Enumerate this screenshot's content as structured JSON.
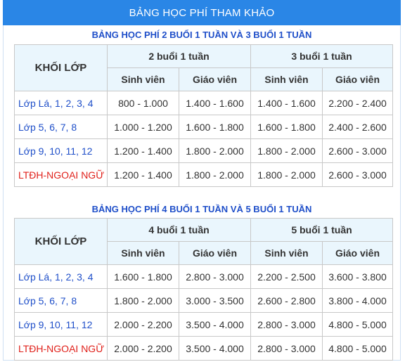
{
  "banner": {
    "title": "BẢNG HỌC PHÍ THAM KHẢO"
  },
  "tables": [
    {
      "title": "BẢNG HỌC PHÍ 2 BUỔI 1 TUẦN VÀ 3 BUỔI 1 TUẦN",
      "grade_header": "KHỐI LỚP",
      "periods": [
        "2 buổi 1 tuần",
        "3 buổi 1 tuần"
      ],
      "roles": [
        "Sinh viên",
        "Giáo viên",
        "Sinh viên",
        "Giáo viên"
      ],
      "rows": [
        {
          "grade": "Lớp Lá, 1, 2, 3, 4",
          "values": [
            "800 - 1.000",
            "1.400 - 1.600",
            "1.400 - 1.600",
            "2.200 - 2.400"
          ]
        },
        {
          "grade": "Lớp 5, 6, 7, 8",
          "values": [
            "1.000 - 1.200",
            "1.600 - 1.800",
            "1.600 - 1.800",
            "2.400 - 2.600"
          ]
        },
        {
          "grade": "Lớp 9, 10, 11, 12",
          "values": [
            "1.200 - 1.400",
            "1.800 - 2.000",
            "1.800 - 2.000",
            "2.600 - 3.000"
          ]
        },
        {
          "grade": "LTĐH-NGOẠI NGỮ",
          "values": [
            "1.200 - 1.400",
            "1.800 - 2.000",
            "1.800 - 2.000",
            "2.600 - 3.000"
          ]
        }
      ]
    },
    {
      "title": "BẢNG HỌC PHÍ 4 BUỔI 1 TUẦN VÀ 5 BUỔI 1 TUẦN",
      "grade_header": "KHỐI LỚP",
      "periods": [
        "4 buổi 1 tuần",
        "5 buổi 1 tuần"
      ],
      "roles": [
        "Sinh viên",
        "Giáo viên",
        "Sinh viên",
        "Giáo viên"
      ],
      "rows": [
        {
          "grade": "Lớp Lá, 1, 2, 3, 4",
          "values": [
            "1.600 - 1.800",
            "2.800 - 3.000",
            "2.200 - 2.500",
            "3.600 - 3.800"
          ]
        },
        {
          "grade": "Lớp 5, 6, 7, 8",
          "values": [
            "1.800 - 2.000",
            "3.000 - 3.500",
            "2.600 - 2.800",
            "3.800 - 4.000"
          ]
        },
        {
          "grade": "Lớp 9, 10, 11, 12",
          "values": [
            "2.000 - 2.200",
            "3.500 - 4.000",
            "2.800 - 3.000",
            "4.800 - 5.000"
          ]
        },
        {
          "grade": "LTĐH-NGOẠI NGỮ",
          "values": [
            "2.000 - 2.200",
            "3.500 - 4.000",
            "2.800 - 3.000",
            "4.800 - 5.000"
          ]
        }
      ]
    }
  ],
  "colors": {
    "banner": "#2a86e6",
    "accent_blue": "#1f4fc9",
    "accent_red": "#e0211b",
    "header_bg": "#eaf6fd"
  }
}
